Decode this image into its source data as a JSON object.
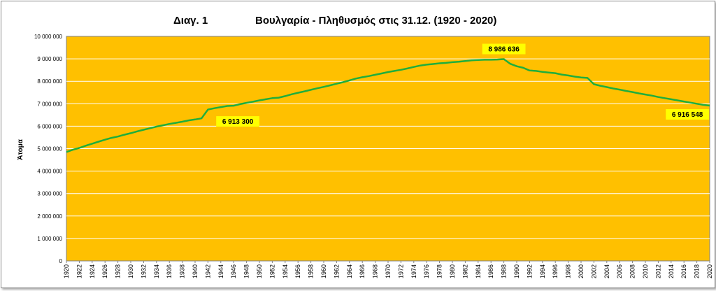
{
  "chart_data": {
    "type": "line",
    "title_left": "Διαγ. 1",
    "title_main": "Βουλγαρία - Πληθυσμός στις 31.12. (1920 - 2020)",
    "ylabel": "Άτομα",
    "xlabel": "",
    "ylim": [
      0,
      10000000
    ],
    "y_ticks": [
      {
        "value": 0,
        "label": "0"
      },
      {
        "value": 1000000,
        "label": "1 000 000"
      },
      {
        "value": 2000000,
        "label": "2 000 000"
      },
      {
        "value": 3000000,
        "label": "3 000 000"
      },
      {
        "value": 4000000,
        "label": "4 000 000"
      },
      {
        "value": 5000000,
        "label": "5 000 000"
      },
      {
        "value": 6000000,
        "label": "6 000 000"
      },
      {
        "value": 7000000,
        "label": "7 000 000"
      },
      {
        "value": 8000000,
        "label": "8 000 000"
      },
      {
        "value": 9000000,
        "label": "9 000 000"
      },
      {
        "value": 10000000,
        "label": "10 000 000"
      }
    ],
    "x_tick_labels": [
      "1920",
      "1922",
      "1924",
      "1926",
      "1928",
      "1930",
      "1932",
      "1934",
      "1936",
      "1938",
      "1940",
      "1942",
      "1944",
      "1946",
      "1948",
      "1950",
      "1952",
      "1954",
      "1956",
      "1958",
      "1960",
      "1962",
      "1964",
      "1966",
      "1968",
      "1970",
      "1972",
      "1974",
      "1976",
      "1978",
      "1980",
      "1982",
      "1984",
      "1986",
      "1988",
      "1990",
      "1992",
      "1994",
      "1996",
      "1998",
      "2000",
      "2002",
      "2004",
      "2006",
      "2008",
      "2010",
      "2012",
      "2014",
      "2016",
      "2018",
      "2020"
    ],
    "grid": true,
    "colors": {
      "plot_background": "#FFC000",
      "line": "#1FAE3C",
      "gridline": "#FFFFFF",
      "label_background": "#FFFF00"
    },
    "series": [
      {
        "x": [
          1920,
          1921,
          1922,
          1923,
          1924,
          1925,
          1926,
          1927,
          1928,
          1929,
          1930,
          1931,
          1932,
          1933,
          1934,
          1935,
          1936,
          1937,
          1938,
          1939,
          1940,
          1941,
          1942,
          1943,
          1944,
          1945,
          1946,
          1947,
          1948,
          1949,
          1950,
          1951,
          1952,
          1953,
          1954,
          1955,
          1956,
          1957,
          1958,
          1959,
          1960,
          1961,
          1962,
          1963,
          1964,
          1965,
          1966,
          1967,
          1968,
          1969,
          1970,
          1971,
          1972,
          1973,
          1974,
          1975,
          1976,
          1977,
          1978,
          1979,
          1980,
          1981,
          1982,
          1983,
          1984,
          1985,
          1986,
          1987,
          1988,
          1989,
          1990,
          1991,
          1992,
          1993,
          1994,
          1995,
          1996,
          1997,
          1998,
          1999,
          2000,
          2001,
          2002,
          2003,
          2004,
          2005,
          2006,
          2007,
          2008,
          2009,
          2010,
          2011,
          2012,
          2013,
          2014,
          2015,
          2016,
          2017,
          2018,
          2019,
          2020
        ],
        "y": [
          4850000,
          4950000,
          5030000,
          5130000,
          5220000,
          5310000,
          5400000,
          5480000,
          5540000,
          5620000,
          5690000,
          5770000,
          5840000,
          5910000,
          5980000,
          6040000,
          6100000,
          6150000,
          6200000,
          6260000,
          6300000,
          6350000,
          6740000,
          6800000,
          6850000,
          6900000,
          6913300,
          6980000,
          7040000,
          7090000,
          7150000,
          7200000,
          7250000,
          7270000,
          7340000,
          7420000,
          7490000,
          7550000,
          7620000,
          7690000,
          7750000,
          7820000,
          7890000,
          7960000,
          8040000,
          8120000,
          8180000,
          8230000,
          8290000,
          8350000,
          8410000,
          8460000,
          8510000,
          8570000,
          8640000,
          8700000,
          8740000,
          8770000,
          8800000,
          8820000,
          8850000,
          8870000,
          8900000,
          8930000,
          8950000,
          8960000,
          8960000,
          8970000,
          8986636,
          8780000,
          8670000,
          8600000,
          8480000,
          8460000,
          8420000,
          8390000,
          8360000,
          8300000,
          8260000,
          8210000,
          8170000,
          8150000,
          7870000,
          7800000,
          7740000,
          7680000,
          7630000,
          7570000,
          7520000,
          7460000,
          7410000,
          7360000,
          7300000,
          7250000,
          7200000,
          7150000,
          7100000,
          7050000,
          7000000,
          6950000,
          6916548
        ]
      }
    ],
    "annotations": [
      {
        "x": 1946,
        "y": 6913300,
        "text": "6 913 300"
      },
      {
        "x": 1988,
        "y": 8986636,
        "text": "8 986 636"
      },
      {
        "x": 2020,
        "y": 6916548,
        "text": "6 916 548"
      }
    ]
  }
}
